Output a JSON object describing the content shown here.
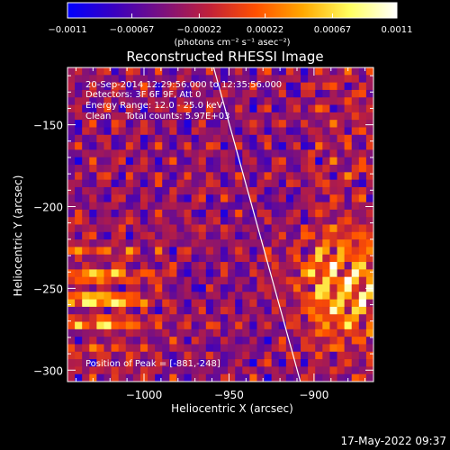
{
  "chart_data": {
    "type": "heatmap",
    "title": "Reconstructed RHESSI Image",
    "xlabel": "Heliocentric X (arcsec)",
    "ylabel": "Heliocentric Y (arcsec)",
    "xlim": [
      -1045,
      -865
    ],
    "ylim": [
      -307,
      -115
    ],
    "x_ticks": [
      -1000,
      -950,
      -900
    ],
    "x_tick_labels": [
      "−1000",
      "−950",
      "−900"
    ],
    "y_ticks": [
      -300,
      -250,
      -200,
      -150
    ],
    "y_tick_labels": [
      "−300",
      "−250",
      "−200",
      "−150"
    ],
    "colorbar": {
      "min": -0.0011,
      "max": 0.0011,
      "ticks": [
        -0.0011,
        -0.00067,
        -0.00022,
        0.00022,
        0.00067,
        0.0011
      ],
      "tick_labels": [
        "−0.0011",
        "−0.00067",
        "−0.00022",
        "0.00022",
        "0.00067",
        "0.0011"
      ],
      "units_label": "(photons cm⁻² s⁻¹ asec⁻²)",
      "colors": [
        "#0000ff",
        "#3a00c0",
        "#7a1080",
        "#c0203a",
        "#ff5000",
        "#ffa800",
        "#ffff60",
        "#ffffff"
      ]
    },
    "annotations": [
      "20-Sep-2014 12:29:56.000 to 12:35:56.000",
      "Detectors: 3F 6F 9F, Att 0",
      "Energy Range: 12.0 - 25.0 keV",
      "Clean     Total counts: 5.97E+03"
    ],
    "peak_label": "Position of Peak = [-881,-248]",
    "peak": [
      -881,
      -248
    ],
    "limb_line": {
      "x": [
        -959,
        -908
      ],
      "y": [
        -115,
        -307
      ],
      "color": "#ffffff"
    },
    "pixel_grid": {
      "cols": 42,
      "rows": 42
    }
  },
  "footer": {
    "date": "17-May-2022 09:37"
  }
}
